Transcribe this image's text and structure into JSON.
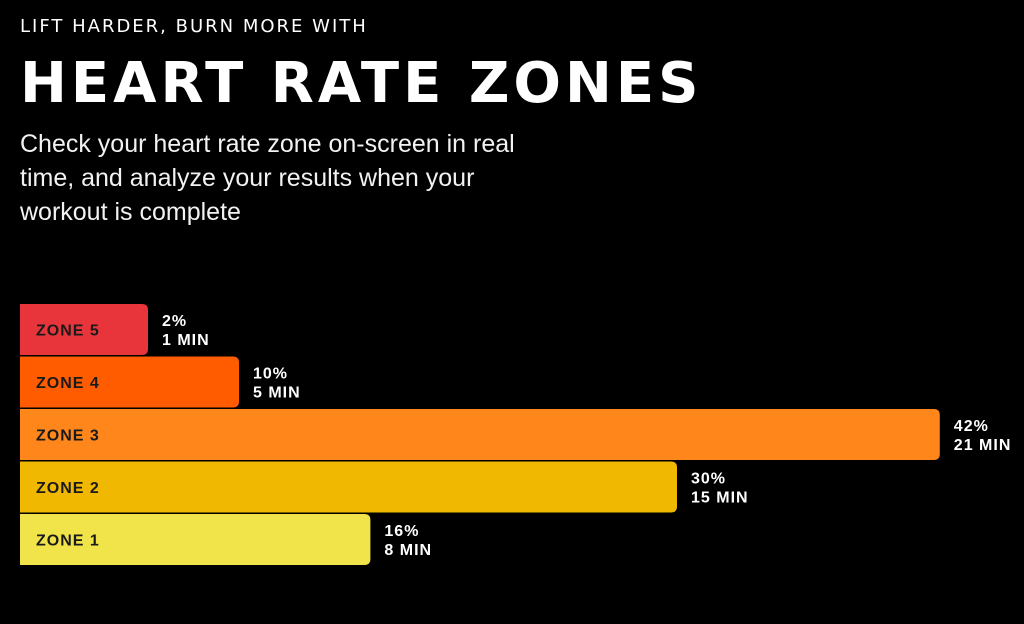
{
  "header": {
    "eyebrow": "LIFT HARDER, BURN MORE WITH",
    "title": "HEART RATE ZONES",
    "subtitle": "Check your heart rate zone on-screen in real time, and analyze your results when your workout is complete"
  },
  "chart_data": {
    "type": "bar",
    "orientation": "horizontal",
    "title": "",
    "xlabel": "",
    "ylabel": "",
    "grid": false,
    "categories": [
      "ZONE 5",
      "ZONE 4",
      "ZONE 3",
      "ZONE 2",
      "ZONE 1"
    ],
    "values": [
      2,
      10,
      42,
      30,
      16
    ],
    "value_labels": [
      "2%",
      "10%",
      "42%",
      "30%",
      "16%"
    ],
    "duration_labels": [
      "1 MIN",
      "5 MIN",
      "21 MIN",
      "15 MIN",
      "8 MIN"
    ],
    "colors": [
      "#e8353b",
      "#ff5c00",
      "#ff861a",
      "#f0b800",
      "#f0e44a"
    ],
    "xlim": [
      0,
      42
    ]
  }
}
